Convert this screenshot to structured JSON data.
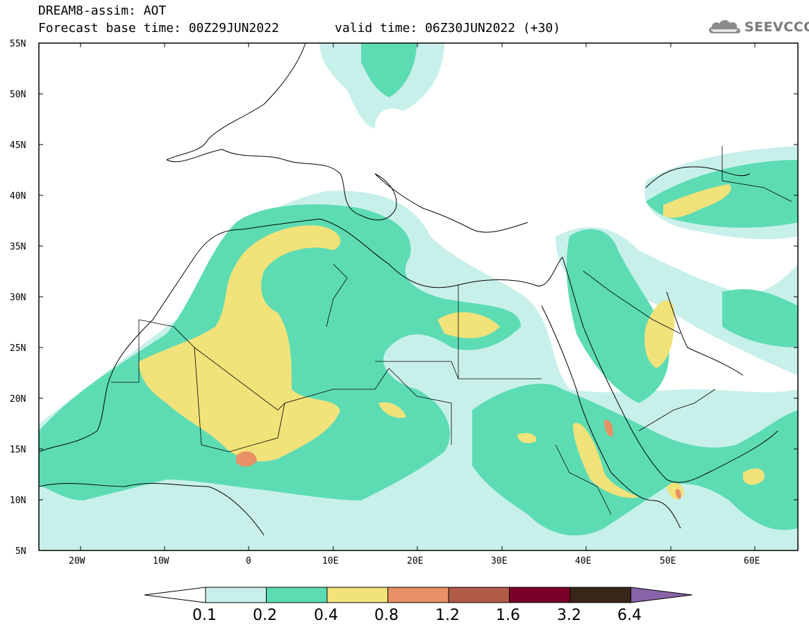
{
  "header": {
    "title": "DREAM8-assim: AOT",
    "base_time": "Forecast base time: 00Z29JUN2022",
    "valid_time": "valid time: 06Z30JUN2022 (+30)"
  },
  "logo": {
    "text": "SEEVCCC",
    "icon": "cloud-icon"
  },
  "map": {
    "lat_labels": [
      "55N",
      "50N",
      "45N",
      "40N",
      "35N",
      "30N",
      "25N",
      "20N",
      "15N",
      "10N",
      "5N"
    ],
    "lon_labels": [
      "20W",
      "10W",
      "0",
      "10E",
      "20E",
      "30E",
      "40E",
      "50E",
      "60E"
    ],
    "lat_range": [
      5,
      55
    ],
    "lon_range": [
      -25,
      65
    ]
  },
  "legend": {
    "levels": [
      "0.1",
      "0.2",
      "0.4",
      "0.8",
      "1.2",
      "1.6",
      "3.2",
      "6.4"
    ],
    "colors": [
      "#c8f0ea",
      "#5ddcb4",
      "#f2e27a",
      "#e89066",
      "#b05a48",
      "#7a0028",
      "#3a2618",
      "#8a64a8"
    ],
    "under_color": "#ffffff",
    "over_color": "#8a64a8"
  }
}
